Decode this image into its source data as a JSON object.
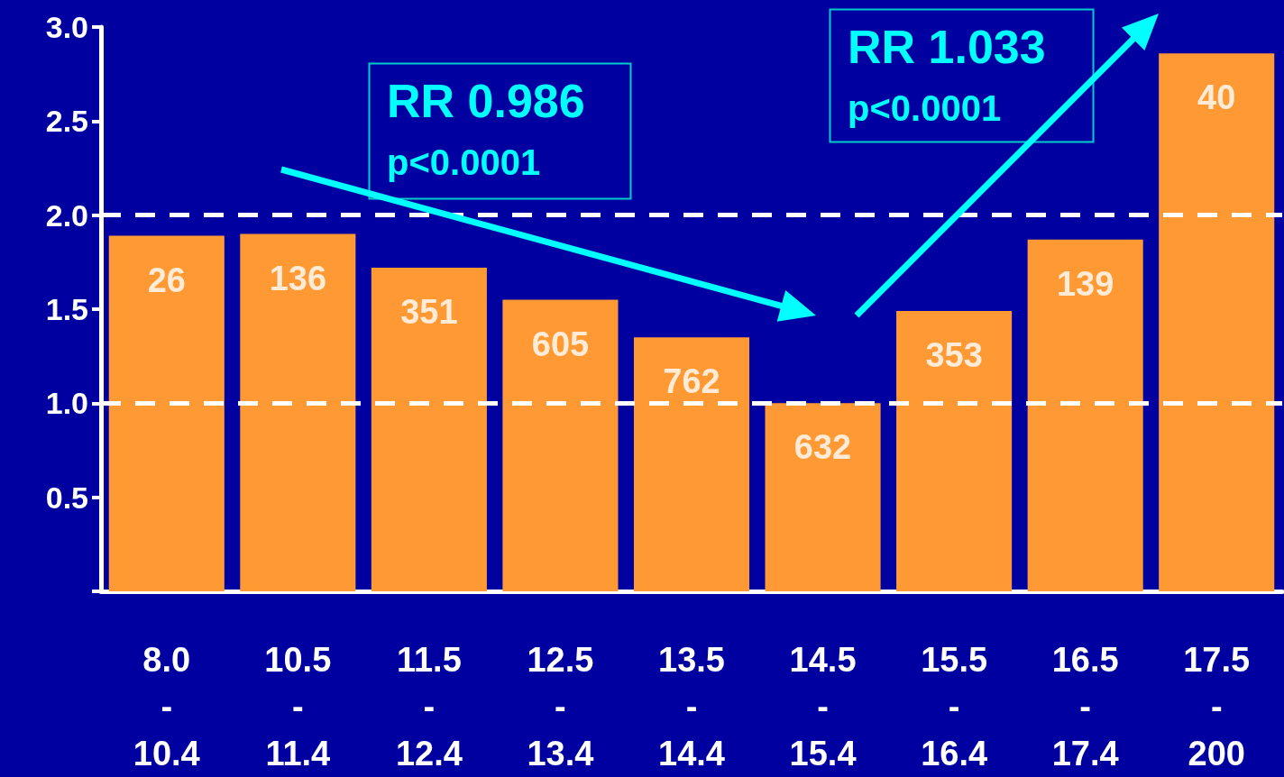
{
  "chart_data": {
    "type": "bar",
    "categories": [
      "8.0\n-\n10.4",
      "10.5\n-\n11.4",
      "11.5\n-\n12.4",
      "12.5\n-\n13.4",
      "13.5\n-\n14.4",
      "14.5\n-\n15.4",
      "15.5\n-\n16.4",
      "16.5\n-\n17.4",
      "17.5\n-\n200"
    ],
    "values": [
      1.89,
      1.9,
      1.72,
      1.55,
      1.35,
      1.0,
      1.49,
      1.87,
      2.86
    ],
    "color": "#ff9933",
    "ylim": [
      0,
      3.0
    ],
    "yticks": [
      {
        "value": 0,
        "label": null
      },
      0.5,
      {
        "value": 1,
        "label": "1.0"
      },
      1.5,
      {
        "value": 2,
        "label": "2.0"
      },
      2.5,
      {
        "value": 3,
        "label": "3.0"
      }
    ],
    "ref_lines": [
      {
        "axis": "y",
        "value": 1.0,
        "color": "#ffffff",
        "line_style": "dashed"
      },
      {
        "axis": "y",
        "value": 2.0,
        "color": "#ffffff",
        "line_style": "dashed"
      }
    ],
    "annotations": [
      "RR 0.986",
      "p<0.0001",
      "RR 1.033",
      "p<0.0001",
      {
        "text": "26",
        "x": "8.0\n-\n10.4",
        "y": 1.89
      },
      {
        "text": "136",
        "x": "10.5\n-\n11.4",
        "y": 1.9
      },
      {
        "text": "351",
        "x": "11.5\n-\n12.4",
        "y": 1.72
      },
      {
        "text": "605",
        "x": "12.5\n-\n13.4",
        "y": 1.55
      },
      {
        "text": "762",
        "x": "13.5\n-\n14.4",
        "y": 1.35
      },
      {
        "text": "632",
        "x": "14.5\n-\n15.4",
        "y": 1.0
      },
      {
        "text": "353",
        "x": "15.5\n-\n16.4",
        "y": 1.49
      },
      {
        "text": "139",
        "x": "16.5\n-\n17.4",
        "y": 1.87
      },
      {
        "text": "40",
        "x": "17.5\n-\n200",
        "y": 2.86
      }
    ]
  }
}
